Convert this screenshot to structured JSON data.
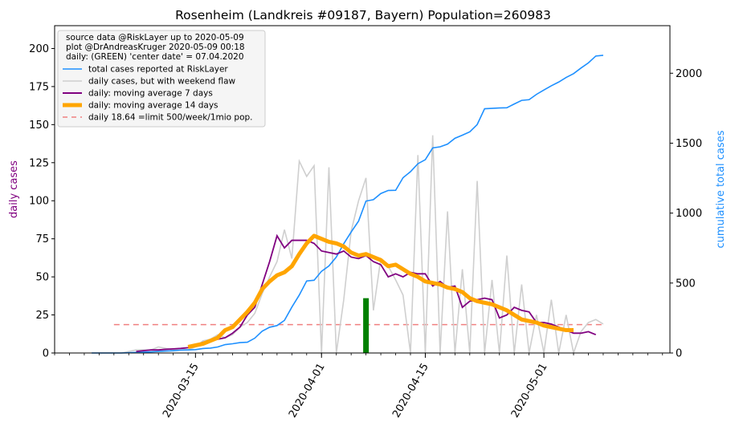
{
  "chart_data": {
    "type": "line",
    "title": "Rosenheim (Landkreis #09187, Bayern) Population=260983",
    "ylabel_left": "daily cases",
    "ylabel_right": "cumulative total cases",
    "xlabel": "",
    "x_tick_labels": [
      "2020-03-15",
      "2020-04-01",
      "2020-04-15",
      "2020-05-01"
    ],
    "x_tick_dates": [
      "2020-03-15",
      "2020-04-01",
      "2020-04-15",
      "2020-05-01"
    ],
    "x_range": [
      "2020-02-25",
      "2020-05-18"
    ],
    "ylim_left": [
      0,
      215
    ],
    "yticks_left": [
      "0",
      "25",
      "50",
      "75",
      "100",
      "125",
      "150",
      "175",
      "200"
    ],
    "ylim_right": [
      0,
      2340
    ],
    "yticks_right": [
      "0",
      "500",
      "1000",
      "1500",
      "2000"
    ],
    "legend_position": "top-left",
    "legend_header": [
      "source data @RiskLayer up to 2020-05-09",
      "plot @DrAndreasKruger 2020-05-09 00:18",
      "daily: (GREEN) 'center date' = 07.04.2020"
    ],
    "colors": {
      "cumulative": "#1e90ff",
      "daily": "#cfcfcf",
      "ma7": "#800080",
      "ma14": "#ffa500",
      "limit": "#f08080",
      "center": "#008000",
      "right_axis_label": "#1e90ff",
      "left_axis_label": "#800080"
    },
    "series": [
      {
        "name": "total cases reported at RiskLayer",
        "axis": "right",
        "style": "line",
        "x": [
          "2020-03-01",
          "2020-03-02",
          "2020-03-03",
          "2020-03-04",
          "2020-03-05",
          "2020-03-06",
          "2020-03-07",
          "2020-03-08",
          "2020-03-09",
          "2020-03-10",
          "2020-03-11",
          "2020-03-12",
          "2020-03-13",
          "2020-03-14",
          "2020-03-15",
          "2020-03-16",
          "2020-03-17",
          "2020-03-18",
          "2020-03-19",
          "2020-03-20",
          "2020-03-21",
          "2020-03-22",
          "2020-03-23",
          "2020-03-24",
          "2020-03-25",
          "2020-03-26",
          "2020-03-27",
          "2020-03-28",
          "2020-03-29",
          "2020-03-30",
          "2020-03-31",
          "2020-04-01",
          "2020-04-02",
          "2020-04-03",
          "2020-04-04",
          "2020-04-05",
          "2020-04-06",
          "2020-04-07",
          "2020-04-08",
          "2020-04-09",
          "2020-04-10",
          "2020-04-11",
          "2020-04-12",
          "2020-04-13",
          "2020-04-14",
          "2020-04-15",
          "2020-04-16",
          "2020-04-17",
          "2020-04-18",
          "2020-04-19",
          "2020-04-20",
          "2020-04-21",
          "2020-04-22",
          "2020-04-23",
          "2020-04-24",
          "2020-04-25",
          "2020-04-26",
          "2020-04-27",
          "2020-04-28",
          "2020-04-29",
          "2020-04-30",
          "2020-05-01",
          "2020-05-02",
          "2020-05-03",
          "2020-05-04",
          "2020-05-05",
          "2020-05-06",
          "2020-05-07",
          "2020-05-08",
          "2020-05-09"
        ],
        "values": [
          0,
          0,
          0,
          0,
          0,
          2,
          4,
          6,
          8,
          11,
          14,
          16,
          20,
          22,
          24,
          32,
          35,
          43,
          60,
          66,
          74,
          77,
          106,
          156,
          184,
          196,
          233,
          328,
          414,
          515,
          520,
          584,
          622,
          686,
          781,
          865,
          943,
          1086,
          1096,
          1140,
          1162,
          1163,
          1253,
          1296,
          1353,
          1382,
          1466,
          1474,
          1493,
          1535,
          1557,
          1581,
          1633,
          1746,
          1749,
          1752,
          1753,
          1780,
          1806,
          1811,
          1849,
          1880,
          1910,
          1937,
          1970,
          1997,
          2037,
          2074,
          2123,
          2128
        ],
        "note": "hidden-placeholder"
      }
    ]
  }
}
